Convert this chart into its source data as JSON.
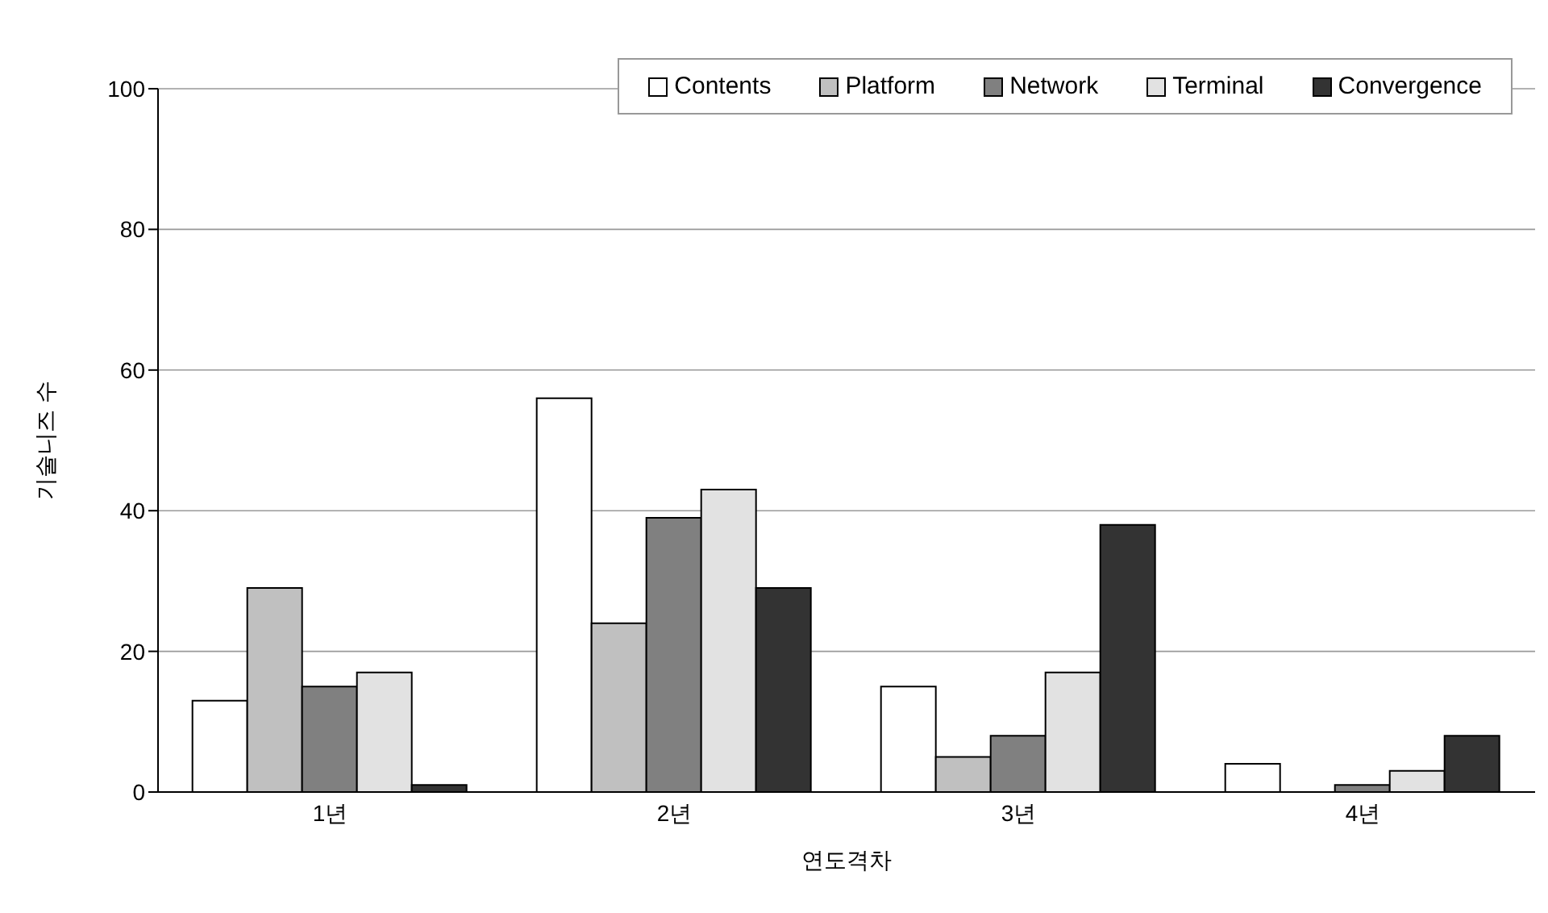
{
  "chart_data": {
    "type": "bar",
    "xlabel": "연도격차",
    "ylabel": "기술니즈 수",
    "categories": [
      "1년",
      "2년",
      "3년",
      "4년"
    ],
    "series": [
      {
        "name": "Contents",
        "color": "#ffffff",
        "values": [
          13,
          56,
          15,
          4
        ]
      },
      {
        "name": "Platform",
        "color": "#c0c0c0",
        "values": [
          29,
          24,
          5,
          0
        ]
      },
      {
        "name": "Network",
        "color": "#808080",
        "values": [
          15,
          39,
          8,
          1
        ]
      },
      {
        "name": "Terminal",
        "color": "#e2e2e2",
        "values": [
          17,
          43,
          17,
          3
        ]
      },
      {
        "name": "Convergence",
        "color": "#333333",
        "values": [
          1,
          29,
          38,
          8
        ]
      }
    ],
    "ylim": [
      0,
      100
    ],
    "yticks": [
      0,
      20,
      40,
      60,
      80,
      100
    ],
    "grid": "y",
    "legend": "top right"
  }
}
